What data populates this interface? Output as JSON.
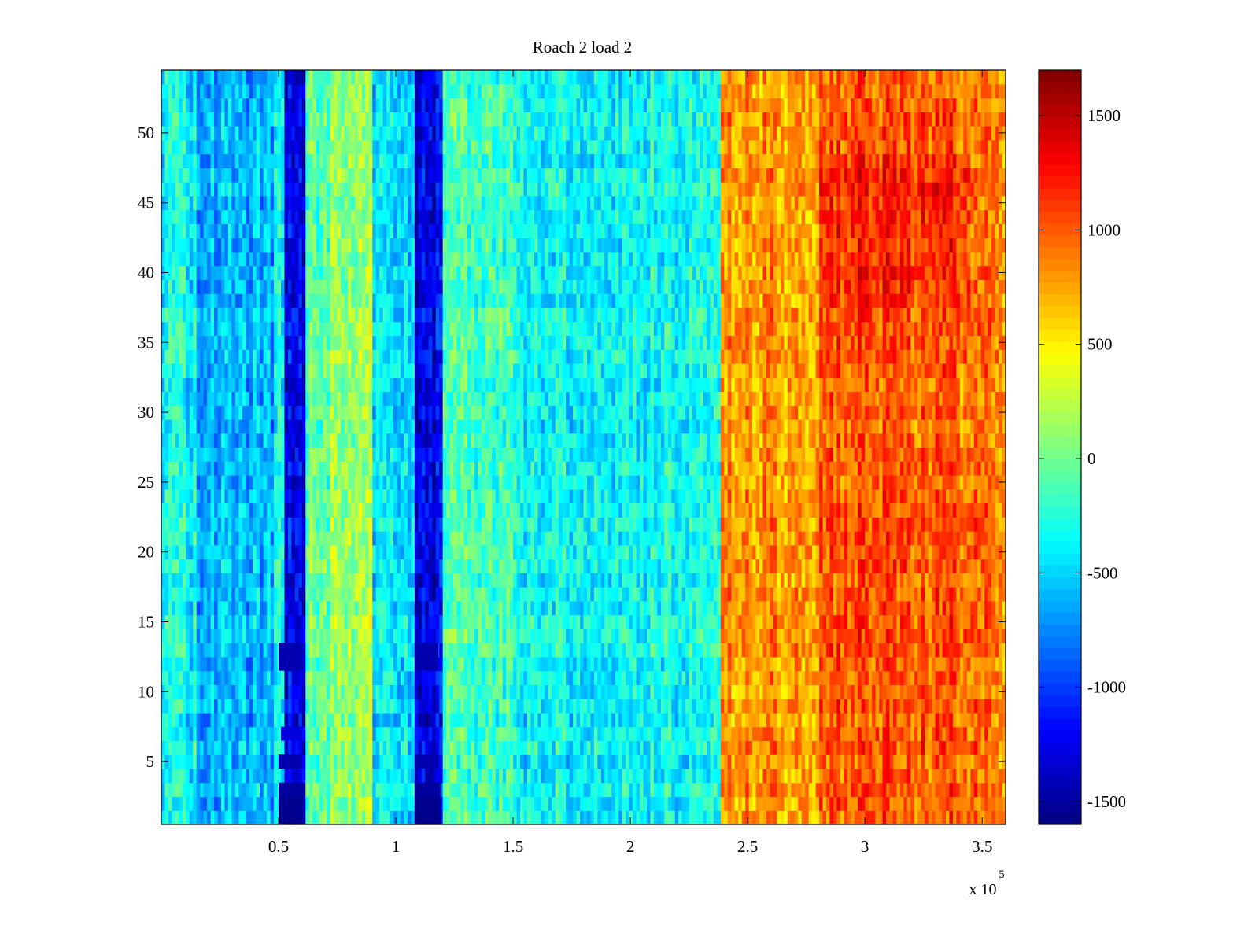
{
  "chart_data": {
    "type": "heatmap",
    "title": "Roach 2 load 2",
    "xlabel": "",
    "ylabel": "",
    "x_multiplier_label": "x 10",
    "x_multiplier_exponent": "5",
    "xlim": [
      0,
      360000
    ],
    "ylim": [
      0.5,
      54.5
    ],
    "x_ticks": [
      {
        "value": 50000,
        "label": "0.5"
      },
      {
        "value": 100000,
        "label": "1"
      },
      {
        "value": 150000,
        "label": "1.5"
      },
      {
        "value": 200000,
        "label": "2"
      },
      {
        "value": 250000,
        "label": "2.5"
      },
      {
        "value": 300000,
        "label": "3"
      },
      {
        "value": 350000,
        "label": "3.5"
      }
    ],
    "y_ticks": [
      {
        "value": 5,
        "label": "5"
      },
      {
        "value": 10,
        "label": "10"
      },
      {
        "value": 15,
        "label": "15"
      },
      {
        "value": 20,
        "label": "20"
      },
      {
        "value": 25,
        "label": "25"
      },
      {
        "value": 30,
        "label": "30"
      },
      {
        "value": 35,
        "label": "35"
      },
      {
        "value": 40,
        "label": "40"
      },
      {
        "value": 45,
        "label": "45"
      },
      {
        "value": 50,
        "label": "50"
      }
    ],
    "rows": 54,
    "colorbar": {
      "colormap": "jet",
      "clim": [
        -1600,
        1700
      ],
      "ticks": [
        {
          "value": 1500,
          "label": "1500"
        },
        {
          "value": 1000,
          "label": "1000"
        },
        {
          "value": 500,
          "label": "500"
        },
        {
          "value": 0,
          "label": "0"
        },
        {
          "value": -500,
          "label": "-500"
        },
        {
          "value": -1000,
          "label": "-1000"
        },
        {
          "value": -1500,
          "label": "-1500"
        }
      ]
    },
    "column_profile": [
      {
        "x0": 0,
        "x1": 15000,
        "value": -350
      },
      {
        "x0": 15000,
        "x1": 48000,
        "value": -600
      },
      {
        "x0": 48000,
        "x1": 53000,
        "value": -350
      },
      {
        "x0": 53000,
        "x1": 62000,
        "value": -1250
      },
      {
        "x0": 62000,
        "x1": 72000,
        "value": -50
      },
      {
        "x0": 72000,
        "x1": 90000,
        "value": 150
      },
      {
        "x0": 90000,
        "x1": 108000,
        "value": -450
      },
      {
        "x0": 108000,
        "x1": 120000,
        "value": -1250
      },
      {
        "x0": 120000,
        "x1": 150000,
        "value": -150
      },
      {
        "x0": 150000,
        "x1": 200000,
        "value": -350
      },
      {
        "x0": 200000,
        "x1": 238000,
        "value": -300
      },
      {
        "x0": 238000,
        "x1": 280000,
        "value": 800
      },
      {
        "x0": 280000,
        "x1": 340000,
        "value": 1000
      },
      {
        "x0": 340000,
        "x1": 360000,
        "value": 900
      }
    ],
    "dark_blocks": [
      {
        "x0": 50000,
        "x1": 60000,
        "y0": 0.5,
        "y1": 2.5,
        "value": -1550
      },
      {
        "x0": 50000,
        "x1": 61000,
        "y0": 2.5,
        "y1": 3.5,
        "value": -1500
      },
      {
        "x0": 50000,
        "x1": 60000,
        "y0": 4.5,
        "y1": 5.5,
        "value": -1450
      },
      {
        "x0": 51000,
        "x1": 60000,
        "y0": 6.5,
        "y1": 7.5,
        "value": -1300
      },
      {
        "x0": 50000,
        "x1": 60000,
        "y0": 11.5,
        "y1": 13.5,
        "value": -1450
      },
      {
        "x0": 108000,
        "x1": 119000,
        "y0": 0.5,
        "y1": 2.5,
        "value": -1550
      },
      {
        "x0": 108000,
        "x1": 119000,
        "y0": 2.5,
        "y1": 3.5,
        "value": -1500
      },
      {
        "x0": 108000,
        "x1": 118000,
        "y0": 4.5,
        "y1": 5.5,
        "value": -1450
      },
      {
        "x0": 108000,
        "x1": 118000,
        "y0": 11.5,
        "y1": 13.5,
        "value": -1450
      }
    ]
  }
}
